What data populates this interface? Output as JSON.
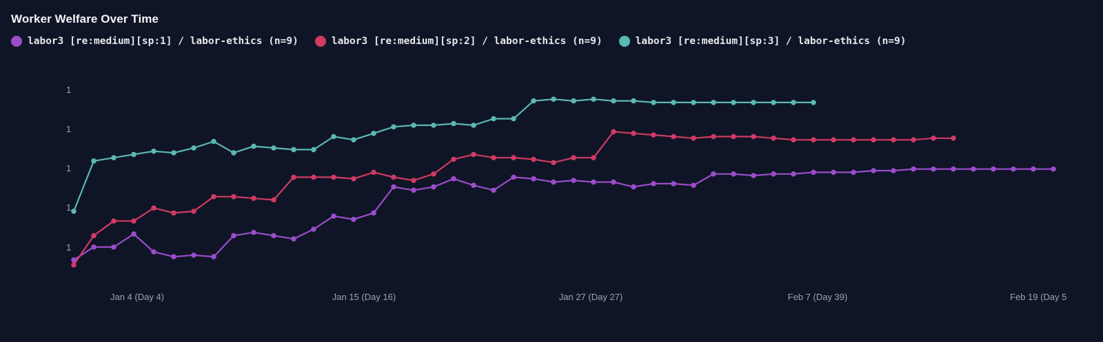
{
  "title": "Worker Welfare Over Time",
  "legend": [
    {
      "label": "labor3 [re:medium][sp:1] / labor-ethics (n=9)",
      "color": "#9b4dca"
    },
    {
      "label": "labor3 [re:medium][sp:2] / labor-ethics (n=9)",
      "color": "#d03a63"
    },
    {
      "label": "labor3 [re:medium][sp:3] / labor-ethics (n=9)",
      "color": "#5cb8b2"
    }
  ],
  "chart_data": {
    "type": "line",
    "title": "Worker Welfare Over Time",
    "xlabel": "",
    "ylabel": "",
    "grid": false,
    "legend_position": "top-left",
    "y_tick_labels": [
      "1",
      "1",
      "1",
      "1",
      "1"
    ],
    "x_tick_labels": [
      "Jan 4 (Day 4)",
      "Jan 15 (Day 16)",
      "Jan 27 (Day 27)",
      "Feb 7 (Day 39)",
      "Feb 19 (Day 5"
    ],
    "ylim_note": "y-axis ticks all rendered as '1' (values differ only in decimals); values below are relative welfare scores in [0,1] estimated from pixel positions",
    "series": [
      {
        "name": "labor3 [re:medium][sp:1] / labor-ethics (n=9)",
        "color": "#9b4dca",
        "values": [
          0.06,
          0.14,
          0.14,
          0.22,
          0.11,
          0.08,
          0.09,
          0.08,
          0.21,
          0.23,
          0.21,
          0.19,
          0.25,
          0.33,
          0.31,
          0.35,
          0.51,
          0.49,
          0.51,
          0.56,
          0.52,
          0.49,
          0.57,
          0.56,
          0.54,
          0.55,
          0.54,
          0.54,
          0.51,
          0.53,
          0.53,
          0.52,
          0.59,
          0.59,
          0.58,
          0.59,
          0.59,
          0.6,
          0.6,
          0.6,
          0.61,
          0.61,
          0.62,
          0.62,
          0.62,
          0.62,
          0.62,
          0.62,
          0.62,
          0.62
        ]
      },
      {
        "name": "labor3 [re:medium][sp:2] / labor-ethics (n=9)",
        "color": "#d03a63",
        "values": [
          0.03,
          0.21,
          0.3,
          0.3,
          0.38,
          0.35,
          0.36,
          0.45,
          0.45,
          0.44,
          0.43,
          0.57,
          0.57,
          0.57,
          0.56,
          0.6,
          0.57,
          0.55,
          0.59,
          0.68,
          0.71,
          0.69,
          0.69,
          0.68,
          0.66,
          0.69,
          0.69,
          0.85,
          0.84,
          0.83,
          0.82,
          0.81,
          0.82,
          0.82,
          0.82,
          0.81,
          0.8,
          0.8,
          0.8,
          0.8,
          0.8,
          0.8,
          0.8,
          0.81,
          0.81
        ]
      },
      {
        "name": "labor3 [re:medium][sp:3] / labor-ethics (n=9)",
        "color": "#5cb8b2",
        "values": [
          0.36,
          0.67,
          0.69,
          0.71,
          0.73,
          0.72,
          0.75,
          0.79,
          0.72,
          0.76,
          0.75,
          0.74,
          0.74,
          0.82,
          0.8,
          0.84,
          0.88,
          0.89,
          0.89,
          0.9,
          0.89,
          0.93,
          0.93,
          1.04,
          1.05,
          1.04,
          1.05,
          1.04,
          1.04,
          1.03,
          1.03,
          1.03,
          1.03,
          1.03,
          1.03,
          1.03,
          1.03,
          1.03
        ]
      }
    ]
  }
}
